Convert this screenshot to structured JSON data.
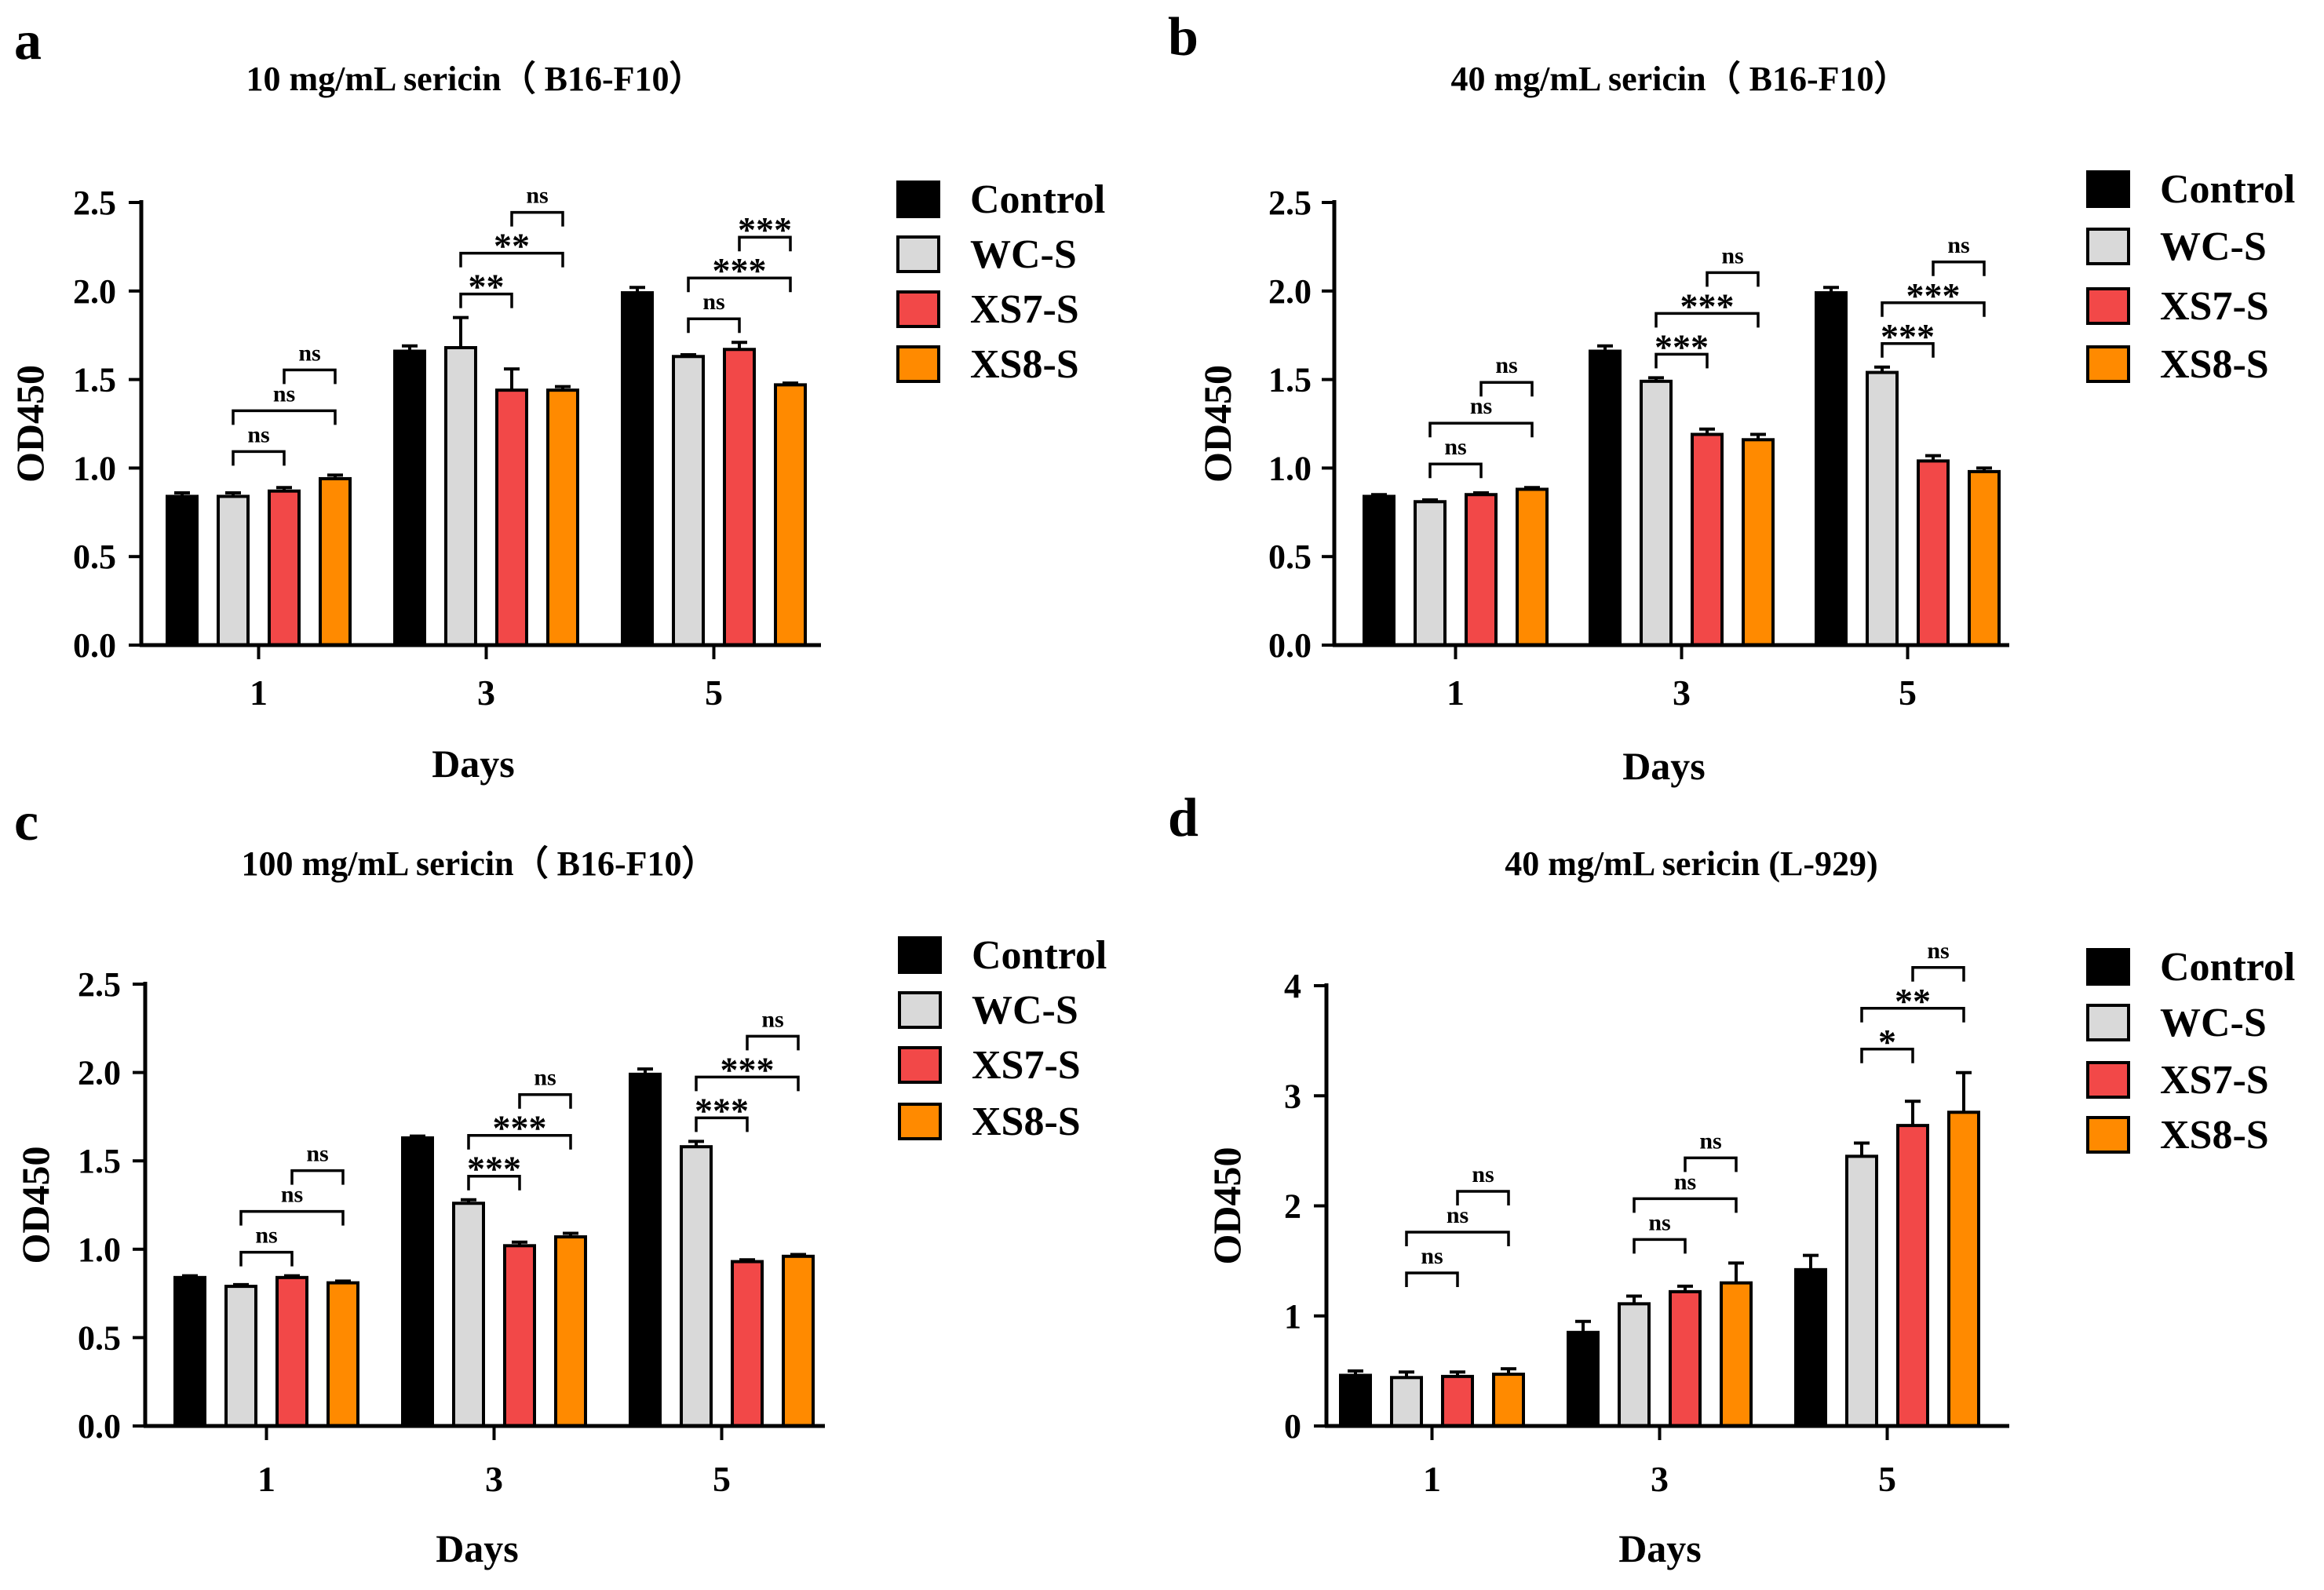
{
  "legend_labels": [
    "Control",
    "WC-S",
    "XS7-S",
    "XS8-S"
  ],
  "colors": [
    "#000000",
    "#d9d9d9",
    "#f24848",
    "#ff8a00"
  ],
  "chart_data": [
    {
      "panel": "a",
      "type": "bar",
      "title": "10 mg/mL sericin（ B16-F10）",
      "xlabel": "Days",
      "ylabel": "OD450",
      "categories": [
        "1",
        "3",
        "5"
      ],
      "ylim": [
        0,
        2.5
      ],
      "yticks": [
        "0.0",
        "0.5",
        "1.0",
        "1.5",
        "2.0",
        "2.5"
      ],
      "legend": "right",
      "series": [
        {
          "name": "Control",
          "values": [
            0.84,
            1.66,
            1.99
          ],
          "errors": [
            0.02,
            0.03,
            0.03
          ]
        },
        {
          "name": "WC-S",
          "values": [
            0.84,
            1.68,
            1.63
          ],
          "errors": [
            0.02,
            0.17,
            0.01
          ]
        },
        {
          "name": "XS7-S",
          "values": [
            0.87,
            1.44,
            1.67
          ],
          "errors": [
            0.02,
            0.12,
            0.04
          ]
        },
        {
          "name": "XS8-S",
          "values": [
            0.94,
            1.44,
            1.47
          ],
          "errors": [
            0.02,
            0.02,
            0.01
          ]
        }
      ],
      "significance": [
        {
          "group": 0,
          "from": 1,
          "to": 2,
          "label": "ns",
          "level": 0
        },
        {
          "group": 0,
          "from": 1,
          "to": 3,
          "label": "ns",
          "level": 1
        },
        {
          "group": 0,
          "from": 2,
          "to": 3,
          "label": "ns",
          "level": 2
        },
        {
          "group": 1,
          "from": 1,
          "to": 2,
          "label": "**",
          "level": 0
        },
        {
          "group": 1,
          "from": 1,
          "to": 3,
          "label": "**",
          "level": 1
        },
        {
          "group": 1,
          "from": 2,
          "to": 3,
          "label": "ns",
          "level": 2
        },
        {
          "group": 2,
          "from": 1,
          "to": 2,
          "label": "ns",
          "level": 0
        },
        {
          "group": 2,
          "from": 1,
          "to": 3,
          "label": "***",
          "level": 1
        },
        {
          "group": 2,
          "from": 2,
          "to": 3,
          "label": "***",
          "level": 2
        }
      ]
    },
    {
      "panel": "b",
      "type": "bar",
      "title": "40 mg/mL sericin（ B16-F10）",
      "xlabel": "Days",
      "ylabel": "OD450",
      "categories": [
        "1",
        "3",
        "5"
      ],
      "ylim": [
        0,
        2.5
      ],
      "yticks": [
        "0.0",
        "0.5",
        "1.0",
        "1.5",
        "2.0",
        "2.5"
      ],
      "legend": "right",
      "series": [
        {
          "name": "Control",
          "values": [
            0.84,
            1.66,
            1.99
          ],
          "errors": [
            0.01,
            0.03,
            0.03
          ]
        },
        {
          "name": "WC-S",
          "values": [
            0.81,
            1.49,
            1.54
          ],
          "errors": [
            0.01,
            0.02,
            0.03
          ]
        },
        {
          "name": "XS7-S",
          "values": [
            0.85,
            1.19,
            1.04
          ],
          "errors": [
            0.01,
            0.03,
            0.03
          ]
        },
        {
          "name": "XS8-S",
          "values": [
            0.88,
            1.16,
            0.98
          ],
          "errors": [
            0.01,
            0.03,
            0.02
          ]
        }
      ],
      "significance": [
        {
          "group": 0,
          "from": 1,
          "to": 2,
          "label": "ns",
          "level": 0
        },
        {
          "group": 0,
          "from": 1,
          "to": 3,
          "label": "ns",
          "level": 1
        },
        {
          "group": 0,
          "from": 2,
          "to": 3,
          "label": "ns",
          "level": 2
        },
        {
          "group": 1,
          "from": 1,
          "to": 2,
          "label": "***",
          "level": 0
        },
        {
          "group": 1,
          "from": 1,
          "to": 3,
          "label": "***",
          "level": 1
        },
        {
          "group": 1,
          "from": 2,
          "to": 3,
          "label": "ns",
          "level": 2
        },
        {
          "group": 2,
          "from": 1,
          "to": 2,
          "label": "***",
          "level": 0
        },
        {
          "group": 2,
          "from": 1,
          "to": 3,
          "label": "***",
          "level": 1
        },
        {
          "group": 2,
          "from": 2,
          "to": 3,
          "label": "ns",
          "level": 2
        }
      ]
    },
    {
      "panel": "c",
      "type": "bar",
      "title": "100 mg/mL sericin（ B16-F10）",
      "xlabel": "Days",
      "ylabel": "OD450",
      "categories": [
        "1",
        "3",
        "5"
      ],
      "ylim": [
        0,
        2.5
      ],
      "yticks": [
        "0.0",
        "0.5",
        "1.0",
        "1.5",
        "2.0",
        "2.5"
      ],
      "legend": "right",
      "series": [
        {
          "name": "Control",
          "values": [
            0.84,
            1.63,
            1.99
          ],
          "errors": [
            0.01,
            0.01,
            0.03
          ]
        },
        {
          "name": "WC-S",
          "values": [
            0.79,
            1.26,
            1.58
          ],
          "errors": [
            0.01,
            0.02,
            0.03
          ]
        },
        {
          "name": "XS7-S",
          "values": [
            0.84,
            1.02,
            0.93
          ],
          "errors": [
            0.01,
            0.02,
            0.01
          ]
        },
        {
          "name": "XS8-S",
          "values": [
            0.81,
            1.07,
            0.96
          ],
          "errors": [
            0.01,
            0.02,
            0.01
          ]
        }
      ],
      "significance": [
        {
          "group": 0,
          "from": 1,
          "to": 2,
          "label": "ns",
          "level": 0
        },
        {
          "group": 0,
          "from": 1,
          "to": 3,
          "label": "ns",
          "level": 1
        },
        {
          "group": 0,
          "from": 2,
          "to": 3,
          "label": "ns",
          "level": 2
        },
        {
          "group": 1,
          "from": 1,
          "to": 2,
          "label": "***",
          "level": 0
        },
        {
          "group": 1,
          "from": 1,
          "to": 3,
          "label": "***",
          "level": 1
        },
        {
          "group": 1,
          "from": 2,
          "to": 3,
          "label": "ns",
          "level": 2
        },
        {
          "group": 2,
          "from": 1,
          "to": 2,
          "label": "***",
          "level": 0
        },
        {
          "group": 2,
          "from": 1,
          "to": 3,
          "label": "***",
          "level": 1
        },
        {
          "group": 2,
          "from": 2,
          "to": 3,
          "label": "ns",
          "level": 2
        }
      ]
    },
    {
      "panel": "d",
      "type": "bar",
      "title": "40 mg/mL sericin (L-929)",
      "xlabel": "Days",
      "ylabel": "OD450",
      "categories": [
        "1",
        "3",
        "5"
      ],
      "ylim": [
        0,
        4
      ],
      "yticks": [
        "0",
        "1",
        "2",
        "3",
        "4"
      ],
      "legend": "right",
      "series": [
        {
          "name": "Control",
          "values": [
            0.46,
            0.85,
            1.42
          ],
          "errors": [
            0.04,
            0.1,
            0.13
          ]
        },
        {
          "name": "WC-S",
          "values": [
            0.44,
            1.11,
            2.45
          ],
          "errors": [
            0.05,
            0.07,
            0.12
          ]
        },
        {
          "name": "XS7-S",
          "values": [
            0.45,
            1.22,
            2.73
          ],
          "errors": [
            0.04,
            0.05,
            0.22
          ]
        },
        {
          "name": "XS8-S",
          "values": [
            0.47,
            1.3,
            2.85
          ],
          "errors": [
            0.05,
            0.18,
            0.36
          ]
        }
      ],
      "significance": [
        {
          "group": 0,
          "from": 1,
          "to": 2,
          "label": "ns",
          "level": 0
        },
        {
          "group": 0,
          "from": 1,
          "to": 3,
          "label": "ns",
          "level": 1
        },
        {
          "group": 0,
          "from": 2,
          "to": 3,
          "label": "ns",
          "level": 2
        },
        {
          "group": 1,
          "from": 1,
          "to": 2,
          "label": "ns",
          "level": 0
        },
        {
          "group": 1,
          "from": 1,
          "to": 3,
          "label": "ns",
          "level": 1
        },
        {
          "group": 1,
          "from": 2,
          "to": 3,
          "label": "ns",
          "level": 2
        },
        {
          "group": 2,
          "from": 1,
          "to": 2,
          "label": "*",
          "level": 0
        },
        {
          "group": 2,
          "from": 1,
          "to": 3,
          "label": "**",
          "level": 1
        },
        {
          "group": 2,
          "from": 2,
          "to": 3,
          "label": "ns",
          "level": 2
        }
      ]
    }
  ]
}
